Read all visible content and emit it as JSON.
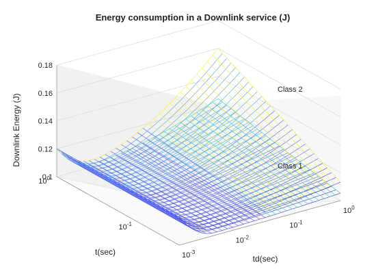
{
  "chart_data": {
    "type": "surface",
    "title": "Energy consumption in a Downlink service (J)",
    "zlabel": "Downlink Energy (J)",
    "xlabel": "td(sec)",
    "ylabel": "t(sec)",
    "zlim": [
      0.1,
      0.18
    ],
    "z_ticks": [
      "0.1",
      "0.12",
      "0.14",
      "0.16",
      "0.18"
    ],
    "x_ticks": [
      {
        "base": "10",
        "exp": "-3"
      },
      {
        "base": "10",
        "exp": "-2"
      },
      {
        "base": "10",
        "exp": "-1"
      },
      {
        "base": "10",
        "exp": "0"
      }
    ],
    "y_ticks": [
      {
        "base": "10",
        "exp": "-1"
      },
      {
        "base": "10",
        "exp": "0"
      }
    ],
    "x_scale": "log",
    "y_scale": "log",
    "grid": true,
    "series": [
      {
        "name": "Class 2",
        "color": "#f5ee3a",
        "energy_at_td_min": 0.12,
        "energy_min": 0.105,
        "energy_at_td_max": 0.16
      },
      {
        "name": "Class 1",
        "color": "#2fd3c0",
        "energy_at_td_min": 0.12,
        "energy_min": 0.102,
        "energy_at_td_max": 0.124
      }
    ],
    "colormap": [
      "#3c35c9",
      "#5560f0",
      "#4aa0ee",
      "#2fd3c0",
      "#f5ee3a"
    ]
  }
}
